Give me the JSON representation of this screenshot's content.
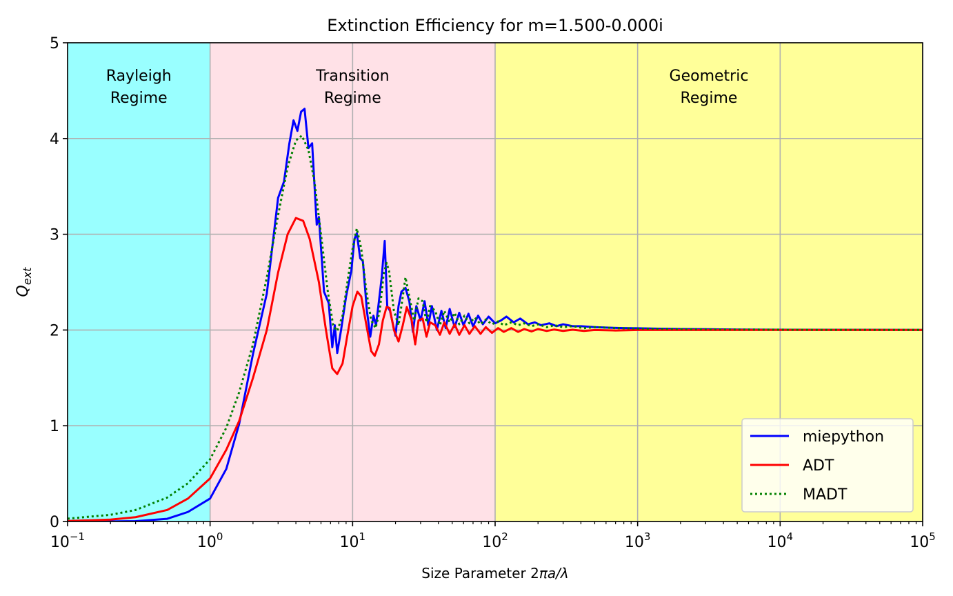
{
  "chart_data": {
    "type": "line",
    "title": "Extinction Efficiency for m=1.500-0.000i",
    "xlabel_prefix": "Size Parameter 2",
    "xlabel_italic": "πa/λ",
    "ylabel_main": "Q",
    "ylabel_sub": "ext",
    "x_scale": "log",
    "xlim": [
      0.1,
      100000
    ],
    "ylim": [
      0,
      5
    ],
    "grid": true,
    "legend_position": "lower-right",
    "x_ticks": [
      {
        "value": 0.1,
        "base": "10",
        "exp": "−1"
      },
      {
        "value": 1,
        "base": "10",
        "exp": "0"
      },
      {
        "value": 10,
        "base": "10",
        "exp": "1"
      },
      {
        "value": 100,
        "base": "10",
        "exp": "2"
      },
      {
        "value": 1000,
        "base": "10",
        "exp": "3"
      },
      {
        "value": 10000,
        "base": "10",
        "exp": "4"
      },
      {
        "value": 100000,
        "base": "10",
        "exp": "5"
      }
    ],
    "y_ticks": [
      0,
      1,
      2,
      3,
      4,
      5
    ],
    "regions": [
      {
        "name": "rayleigh",
        "from": 0.1,
        "to": 1,
        "color": "#99ffff",
        "line1": "Rayleigh",
        "line2": "Regime",
        "label_x": 0.316
      },
      {
        "name": "transition",
        "from": 1,
        "to": 100,
        "color": "#ffe1e7",
        "line1": "Transition",
        "line2": "Regime",
        "label_x": 10
      },
      {
        "name": "geometric",
        "from": 100,
        "to": 100000,
        "color": "#ffff99",
        "line1": "Geometric",
        "line2": "Regime",
        "label_x": 3162
      }
    ],
    "series": [
      {
        "name": "miepython",
        "color": "#0000ff",
        "dash": "none",
        "points": [
          [
            0.1,
            0.0
          ],
          [
            0.2,
            0.0008
          ],
          [
            0.3,
            0.004
          ],
          [
            0.5,
            0.028
          ],
          [
            0.7,
            0.1
          ],
          [
            1.0,
            0.24
          ],
          [
            1.3,
            0.55
          ],
          [
            1.6,
            1.02
          ],
          [
            2.0,
            1.75
          ],
          [
            2.5,
            2.38
          ],
          [
            3.0,
            3.38
          ],
          [
            3.3,
            3.55
          ],
          [
            3.6,
            3.95
          ],
          [
            3.85,
            4.19
          ],
          [
            4.1,
            4.08
          ],
          [
            4.35,
            4.28
          ],
          [
            4.6,
            4.31
          ],
          [
            4.9,
            3.9
          ],
          [
            5.2,
            3.95
          ],
          [
            5.6,
            3.1
          ],
          [
            5.8,
            3.18
          ],
          [
            6.3,
            2.4
          ],
          [
            6.8,
            2.28
          ],
          [
            7.2,
            1.82
          ],
          [
            7.5,
            2.05
          ],
          [
            7.8,
            1.76
          ],
          [
            8.3,
            2.0
          ],
          [
            9.0,
            2.35
          ],
          [
            9.8,
            2.62
          ],
          [
            10.3,
            2.95
          ],
          [
            10.7,
            3.01
          ],
          [
            11.3,
            2.75
          ],
          [
            11.8,
            2.72
          ],
          [
            12.6,
            2.2
          ],
          [
            13.3,
            1.93
          ],
          [
            14.0,
            2.15
          ],
          [
            14.6,
            2.05
          ],
          [
            15.3,
            2.3
          ],
          [
            16.0,
            2.55
          ],
          [
            16.8,
            2.93
          ],
          [
            17.5,
            2.25
          ],
          [
            18.3,
            2.2
          ],
          [
            20.0,
            1.94
          ],
          [
            21.0,
            2.25
          ],
          [
            22.0,
            2.4
          ],
          [
            23.5,
            2.44
          ],
          [
            25.0,
            2.3
          ],
          [
            26.5,
            1.98
          ],
          [
            28.0,
            2.25
          ],
          [
            30.0,
            2.1
          ],
          [
            32.0,
            2.3
          ],
          [
            34.0,
            2.05
          ],
          [
            36.0,
            2.25
          ],
          [
            39.0,
            2.0
          ],
          [
            42.0,
            2.2
          ],
          [
            45.0,
            2.02
          ],
          [
            48.0,
            2.22
          ],
          [
            52.0,
            2.03
          ],
          [
            56.0,
            2.18
          ],
          [
            60.0,
            2.05
          ],
          [
            65.0,
            2.17
          ],
          [
            70.0,
            2.04
          ],
          [
            76.0,
            2.15
          ],
          [
            82.0,
            2.06
          ],
          [
            90.0,
            2.14
          ],
          [
            100,
            2.07
          ],
          [
            110,
            2.1
          ],
          [
            120,
            2.14
          ],
          [
            135,
            2.08
          ],
          [
            150,
            2.12
          ],
          [
            170,
            2.06
          ],
          [
            190,
            2.08
          ],
          [
            210,
            2.05
          ],
          [
            240,
            2.07
          ],
          [
            270,
            2.04
          ],
          [
            300,
            2.06
          ],
          [
            350,
            2.04
          ],
          [
            400,
            2.04
          ],
          [
            500,
            2.03
          ],
          [
            600,
            2.025
          ],
          [
            800,
            2.02
          ],
          [
            1000,
            2.018
          ],
          [
            1500,
            2.013
          ],
          [
            2000,
            2.01
          ],
          [
            3000,
            2.008
          ],
          [
            5000,
            2.005
          ],
          [
            10000,
            2.003
          ],
          [
            30000,
            2.002
          ],
          [
            100000,
            2.001
          ]
        ]
      },
      {
        "name": "ADT",
        "color": "#ff0000",
        "dash": "none",
        "points": [
          [
            0.1,
            0.005
          ],
          [
            0.2,
            0.02
          ],
          [
            0.3,
            0.045
          ],
          [
            0.5,
            0.12
          ],
          [
            0.7,
            0.24
          ],
          [
            1.0,
            0.45
          ],
          [
            1.3,
            0.75
          ],
          [
            1.6,
            1.05
          ],
          [
            2.0,
            1.5
          ],
          [
            2.5,
            2.0
          ],
          [
            3.0,
            2.6
          ],
          [
            3.5,
            3.0
          ],
          [
            4.0,
            3.17
          ],
          [
            4.5,
            3.14
          ],
          [
            5.0,
            2.95
          ],
          [
            5.8,
            2.5
          ],
          [
            6.5,
            2.0
          ],
          [
            7.2,
            1.6
          ],
          [
            7.8,
            1.54
          ],
          [
            8.5,
            1.65
          ],
          [
            9.2,
            1.95
          ],
          [
            10.0,
            2.25
          ],
          [
            10.8,
            2.4
          ],
          [
            11.5,
            2.35
          ],
          [
            12.5,
            2.05
          ],
          [
            13.5,
            1.78
          ],
          [
            14.3,
            1.73
          ],
          [
            15.3,
            1.85
          ],
          [
            16.3,
            2.1
          ],
          [
            17.3,
            2.24
          ],
          [
            18.2,
            2.23
          ],
          [
            19.5,
            2.0
          ],
          [
            21.0,
            1.88
          ],
          [
            22.5,
            2.05
          ],
          [
            24.0,
            2.24
          ],
          [
            26.0,
            2.1
          ],
          [
            27.5,
            1.85
          ],
          [
            29.0,
            2.1
          ],
          [
            31.0,
            2.12
          ],
          [
            33.0,
            1.93
          ],
          [
            35.0,
            2.08
          ],
          [
            38.0,
            2.05
          ],
          [
            41.0,
            1.95
          ],
          [
            44.0,
            2.08
          ],
          [
            48.0,
            1.96
          ],
          [
            52.0,
            2.06
          ],
          [
            56.0,
            1.95
          ],
          [
            61.0,
            2.05
          ],
          [
            66.0,
            1.96
          ],
          [
            72.0,
            2.04
          ],
          [
            79.0,
            1.96
          ],
          [
            86.0,
            2.03
          ],
          [
            95.0,
            1.97
          ],
          [
            105,
            2.02
          ],
          [
            115,
            1.98
          ],
          [
            130,
            2.02
          ],
          [
            145,
            1.98
          ],
          [
            160,
            2.01
          ],
          [
            180,
            1.985
          ],
          [
            200,
            2.01
          ],
          [
            230,
            1.99
          ],
          [
            260,
            2.005
          ],
          [
            300,
            1.99
          ],
          [
            350,
            2.003
          ],
          [
            420,
            1.99
          ],
          [
            500,
            2.0
          ],
          [
            700,
            1.995
          ],
          [
            1000,
            2.0
          ],
          [
            2000,
            2.0
          ],
          [
            100000,
            2.0
          ]
        ]
      },
      {
        "name": "MADT",
        "color": "#008000",
        "dash": "dotted",
        "points": [
          [
            0.1,
            0.03
          ],
          [
            0.2,
            0.07
          ],
          [
            0.3,
            0.12
          ],
          [
            0.5,
            0.25
          ],
          [
            0.7,
            0.4
          ],
          [
            1.0,
            0.65
          ],
          [
            1.3,
            0.98
          ],
          [
            1.6,
            1.35
          ],
          [
            2.0,
            1.85
          ],
          [
            2.5,
            2.55
          ],
          [
            3.0,
            3.2
          ],
          [
            3.5,
            3.7
          ],
          [
            4.0,
            3.98
          ],
          [
            4.4,
            4.03
          ],
          [
            4.9,
            3.88
          ],
          [
            5.4,
            3.55
          ],
          [
            6.0,
            3.0
          ],
          [
            6.7,
            2.4
          ],
          [
            7.3,
            2.05
          ],
          [
            7.8,
            1.99
          ],
          [
            8.5,
            2.15
          ],
          [
            9.3,
            2.55
          ],
          [
            10.0,
            2.85
          ],
          [
            10.7,
            3.06
          ],
          [
            11.5,
            2.85
          ],
          [
            12.5,
            2.4
          ],
          [
            13.5,
            2.1
          ],
          [
            14.5,
            2.02
          ],
          [
            15.5,
            2.2
          ],
          [
            16.5,
            2.58
          ],
          [
            17.3,
            2.7
          ],
          [
            18.0,
            2.62
          ],
          [
            19.5,
            2.2
          ],
          [
            21.0,
            2.05
          ],
          [
            22.5,
            2.35
          ],
          [
            23.5,
            2.55
          ],
          [
            25.0,
            2.35
          ],
          [
            27.0,
            2.1
          ],
          [
            29.0,
            2.33
          ],
          [
            31.0,
            2.3
          ],
          [
            33.0,
            2.08
          ],
          [
            35.0,
            2.25
          ],
          [
            38.0,
            2.2
          ],
          [
            41.0,
            2.05
          ],
          [
            44.0,
            2.2
          ],
          [
            48.0,
            2.08
          ],
          [
            52.0,
            2.18
          ],
          [
            56.0,
            2.06
          ],
          [
            61.0,
            2.15
          ],
          [
            66.0,
            2.07
          ],
          [
            72.0,
            2.13
          ],
          [
            79.0,
            2.06
          ],
          [
            86.0,
            2.11
          ],
          [
            95.0,
            2.06
          ],
          [
            105,
            2.09
          ],
          [
            115,
            2.05
          ],
          [
            130,
            2.08
          ],
          [
            145,
            2.05
          ],
          [
            160,
            2.07
          ],
          [
            180,
            2.04
          ],
          [
            200,
            2.06
          ],
          [
            230,
            2.03
          ],
          [
            260,
            2.05
          ],
          [
            300,
            2.03
          ],
          [
            350,
            2.04
          ],
          [
            420,
            2.02
          ],
          [
            500,
            2.03
          ],
          [
            700,
            2.02
          ],
          [
            1000,
            2.015
          ],
          [
            2000,
            2.01
          ],
          [
            5000,
            2.005
          ],
          [
            20000,
            2.002
          ],
          [
            100000,
            2.001
          ]
        ]
      }
    ]
  }
}
